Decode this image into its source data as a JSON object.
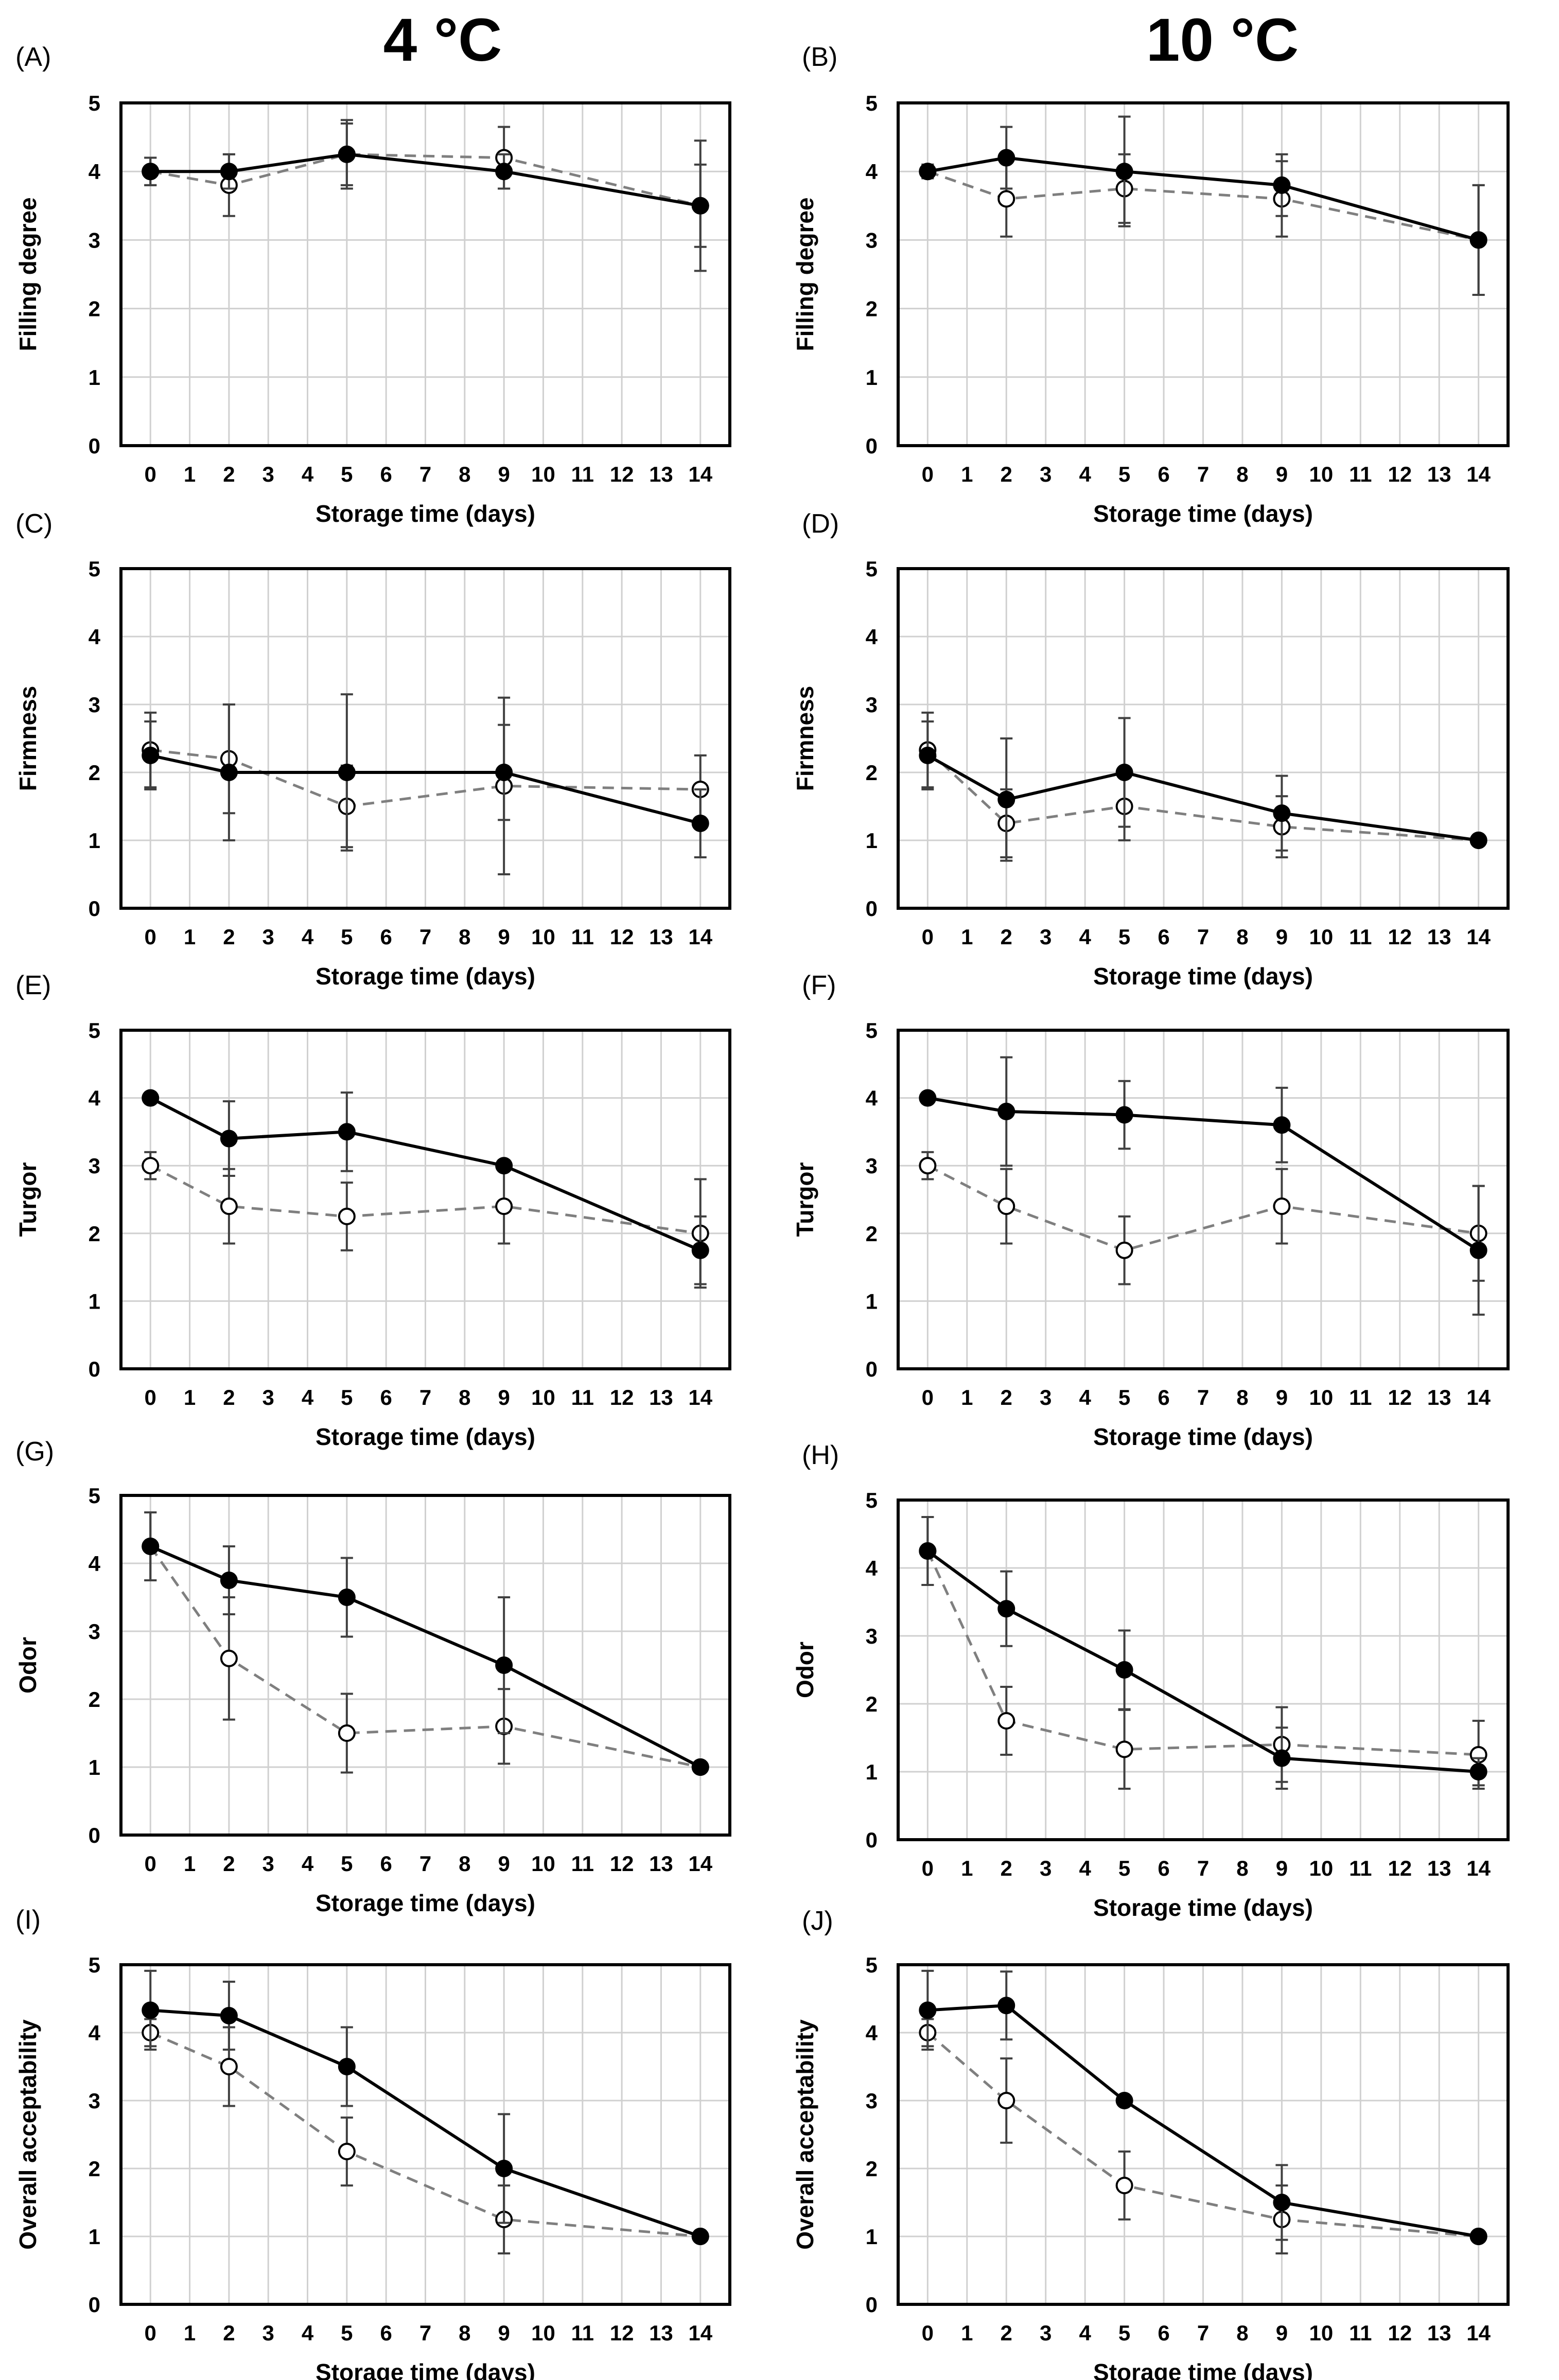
{
  "column_titles": [
    "4 °C",
    "10 °C"
  ],
  "colors": {
    "series_solid": "#000000",
    "series_dashed": "#7f7f7f",
    "grid": "#d0d0d0",
    "errorbar": "#404040"
  },
  "chart_data": [
    {
      "panel": "(A)",
      "type": "line",
      "ylabel": "Filling degree",
      "xlabel": "Storage time (days)",
      "xticks": [
        "0",
        "1",
        "2",
        "3",
        "4",
        "5",
        "6",
        "7",
        "8",
        "9",
        "10",
        "11",
        "12",
        "13",
        "14"
      ],
      "yticks": [
        "0",
        "1",
        "2",
        "3",
        "4",
        "5"
      ],
      "xlim": [
        0,
        14
      ],
      "ylim": [
        0,
        5
      ],
      "grid": true,
      "series": [
        {
          "name": "filled",
          "style": "solid",
          "marker": "filled-circle",
          "x": [
            0,
            2,
            5,
            9,
            14
          ],
          "y": [
            4.0,
            4.0,
            4.25,
            4.0,
            3.5
          ],
          "err": [
            0.2,
            0.25,
            0.5,
            0.25,
            0.6
          ]
        },
        {
          "name": "open",
          "style": "dashed",
          "marker": "open-circle",
          "x": [
            0,
            2,
            5,
            9,
            14
          ],
          "y": [
            4.0,
            3.8,
            4.25,
            4.2,
            3.5
          ],
          "err": [
            0.2,
            0.45,
            0.45,
            0.45,
            0.95
          ]
        }
      ]
    },
    {
      "panel": "(B)",
      "type": "line",
      "ylabel": "Filling degree",
      "xlabel": "Storage time (days)",
      "xticks": [
        "0",
        "1",
        "2",
        "3",
        "4",
        "5",
        "6",
        "7",
        "8",
        "9",
        "10",
        "11",
        "12",
        "13",
        "14"
      ],
      "yticks": [
        "0",
        "1",
        "2",
        "3",
        "4",
        "5"
      ],
      "xlim": [
        0,
        14
      ],
      "ylim": [
        0,
        5
      ],
      "grid": true,
      "series": [
        {
          "name": "filled",
          "style": "solid",
          "marker": "filled-circle",
          "x": [
            0,
            2,
            5,
            9,
            14
          ],
          "y": [
            4.0,
            4.2,
            4.0,
            3.8,
            3.0
          ],
          "err": [
            0.1,
            0.45,
            0.8,
            0.45,
            0.8
          ]
        },
        {
          "name": "open",
          "style": "dashed",
          "marker": "open-circle",
          "x": [
            0,
            2,
            5,
            9,
            14
          ],
          "y": [
            4.0,
            3.6,
            3.75,
            3.6,
            3.0
          ],
          "err": [
            0.1,
            0.55,
            0.5,
            0.55,
            0.8
          ]
        }
      ]
    },
    {
      "panel": "(C)",
      "type": "line",
      "ylabel": "Firmness",
      "xlabel": "Storage time (days)",
      "xticks": [
        "0",
        "1",
        "2",
        "3",
        "4",
        "5",
        "6",
        "7",
        "8",
        "9",
        "10",
        "11",
        "12",
        "13",
        "14"
      ],
      "yticks": [
        "0",
        "1",
        "2",
        "3",
        "4",
        "5"
      ],
      "xlim": [
        0,
        14
      ],
      "ylim": [
        0,
        5
      ],
      "grid": true,
      "series": [
        {
          "name": "filled",
          "style": "solid",
          "marker": "filled-circle",
          "x": [
            0,
            2,
            5,
            9,
            14
          ],
          "y": [
            2.25,
            2.0,
            2.0,
            2.0,
            1.25
          ],
          "err": [
            0.5,
            1.0,
            1.15,
            0.7,
            0.5
          ]
        },
        {
          "name": "open",
          "style": "dashed",
          "marker": "open-circle",
          "x": [
            0,
            2,
            5,
            9,
            14
          ],
          "y": [
            2.33,
            2.2,
            1.5,
            1.8,
            1.75
          ],
          "err": [
            0.55,
            0.8,
            0.6,
            1.3,
            0.5
          ]
        }
      ]
    },
    {
      "panel": "(D)",
      "type": "line",
      "ylabel": "Firmness",
      "xlabel": "Storage time (days)",
      "xticks": [
        "0",
        "1",
        "2",
        "3",
        "4",
        "5",
        "6",
        "7",
        "8",
        "9",
        "10",
        "11",
        "12",
        "13",
        "14"
      ],
      "yticks": [
        "0",
        "1",
        "2",
        "3",
        "4",
        "5"
      ],
      "xlim": [
        0,
        14
      ],
      "ylim": [
        0,
        5
      ],
      "grid": true,
      "series": [
        {
          "name": "filled",
          "style": "solid",
          "marker": "filled-circle",
          "x": [
            0,
            2,
            5,
            9,
            14
          ],
          "y": [
            2.25,
            1.6,
            2.0,
            1.4,
            1.0
          ],
          "err": [
            0.5,
            0.9,
            0.8,
            0.55,
            0.08
          ]
        },
        {
          "name": "open",
          "style": "dashed",
          "marker": "open-circle",
          "x": [
            0,
            2,
            5,
            9,
            14
          ],
          "y": [
            2.33,
            1.25,
            1.5,
            1.2,
            1.0
          ],
          "err": [
            0.55,
            0.5,
            0.5,
            0.45,
            0.05
          ]
        }
      ]
    },
    {
      "panel": "(E)",
      "type": "line",
      "ylabel": "Turgor",
      "xlabel": "Storage time (days)",
      "xticks": [
        "0",
        "1",
        "2",
        "3",
        "4",
        "5",
        "6",
        "7",
        "8",
        "9",
        "10",
        "11",
        "12",
        "13",
        "14"
      ],
      "yticks": [
        "0",
        "1",
        "2",
        "3",
        "4",
        "5"
      ],
      "xlim": [
        0,
        14
      ],
      "ylim": [
        0,
        5
      ],
      "grid": true,
      "series": [
        {
          "name": "filled",
          "style": "solid",
          "marker": "filled-circle",
          "x": [
            0,
            2,
            5,
            9,
            14
          ],
          "y": [
            4.0,
            3.4,
            3.5,
            3.0,
            1.75
          ],
          "err": [
            0.08,
            0.55,
            0.58,
            0.08,
            0.5
          ]
        },
        {
          "name": "open",
          "style": "dashed",
          "marker": "open-circle",
          "x": [
            0,
            2,
            5,
            9,
            14
          ],
          "y": [
            3.0,
            2.4,
            2.25,
            2.4,
            2.0
          ],
          "err": [
            0.2,
            0.55,
            0.5,
            0.55,
            0.8
          ]
        }
      ]
    },
    {
      "panel": "(F)",
      "type": "line",
      "ylabel": "Turgor",
      "xlabel": "Storage time (days)",
      "xticks": [
        "0",
        "1",
        "2",
        "3",
        "4",
        "5",
        "6",
        "7",
        "8",
        "9",
        "10",
        "11",
        "12",
        "13",
        "14"
      ],
      "yticks": [
        "0",
        "1",
        "2",
        "3",
        "4",
        "5"
      ],
      "xlim": [
        0,
        14
      ],
      "ylim": [
        0,
        5
      ],
      "grid": true,
      "series": [
        {
          "name": "filled",
          "style": "solid",
          "marker": "filled-circle",
          "x": [
            0,
            2,
            5,
            9,
            14
          ],
          "y": [
            4.0,
            3.8,
            3.75,
            3.6,
            1.75
          ],
          "err": [
            0.08,
            0.8,
            0.5,
            0.55,
            0.95
          ]
        },
        {
          "name": "open",
          "style": "dashed",
          "marker": "open-circle",
          "x": [
            0,
            2,
            5,
            9,
            14
          ],
          "y": [
            3.0,
            2.4,
            1.75,
            2.4,
            2.0
          ],
          "err": [
            0.2,
            0.55,
            0.5,
            0.55,
            0.7
          ]
        }
      ]
    },
    {
      "panel": "(G)",
      "type": "line",
      "ylabel": "Odor",
      "xlabel": "Storage time (days)",
      "xticks": [
        "0",
        "1",
        "2",
        "3",
        "4",
        "5",
        "6",
        "7",
        "8",
        "9",
        "10",
        "11",
        "12",
        "13",
        "14"
      ],
      "yticks": [
        "0",
        "1",
        "2",
        "3",
        "4",
        "5"
      ],
      "xlim": [
        0,
        14
      ],
      "ylim": [
        0,
        5
      ],
      "grid": true,
      "series": [
        {
          "name": "filled",
          "style": "solid",
          "marker": "filled-circle",
          "x": [
            0,
            2,
            5,
            9,
            14
          ],
          "y": [
            4.25,
            3.75,
            3.5,
            2.5,
            1.0
          ],
          "err": [
            0.5,
            0.5,
            0.58,
            1.0,
            0.0
          ]
        },
        {
          "name": "open",
          "style": "dashed",
          "marker": "open-circle",
          "x": [
            0,
            2,
            5,
            9,
            14
          ],
          "y": [
            4.25,
            2.6,
            1.5,
            1.6,
            1.0
          ],
          "err": [
            0.5,
            0.9,
            0.58,
            0.55,
            0.0
          ]
        }
      ]
    },
    {
      "panel": "(H)",
      "type": "line",
      "ylabel": "Odor",
      "xlabel": "Storage time (days)",
      "xticks": [
        "0",
        "1",
        "2",
        "3",
        "4",
        "5",
        "6",
        "7",
        "8",
        "9",
        "10",
        "11",
        "12",
        "13",
        "14"
      ],
      "yticks": [
        "0",
        "1",
        "2",
        "3",
        "4",
        "5"
      ],
      "xlim": [
        0,
        14
      ],
      "ylim": [
        0,
        5
      ],
      "grid": true,
      "series": [
        {
          "name": "filled",
          "style": "solid",
          "marker": "filled-circle",
          "x": [
            0,
            2,
            5,
            9,
            14
          ],
          "y": [
            4.25,
            3.4,
            2.5,
            1.2,
            1.0
          ],
          "err": [
            0.5,
            0.55,
            0.58,
            0.45,
            0.2
          ]
        },
        {
          "name": "open",
          "style": "dashed",
          "marker": "open-circle",
          "x": [
            0,
            2,
            5,
            9,
            14
          ],
          "y": [
            4.25,
            1.75,
            1.33,
            1.4,
            1.25
          ],
          "err": [
            0.5,
            0.5,
            0.58,
            0.55,
            0.5
          ]
        }
      ]
    },
    {
      "panel": "(I)",
      "type": "line",
      "ylabel": "Overall acceptability",
      "xlabel": "Storage time (days)",
      "xticks": [
        "0",
        "1",
        "2",
        "3",
        "4",
        "5",
        "6",
        "7",
        "8",
        "9",
        "10",
        "11",
        "12",
        "13",
        "14"
      ],
      "yticks": [
        "0",
        "1",
        "2",
        "3",
        "4",
        "5"
      ],
      "xlim": [
        0,
        14
      ],
      "ylim": [
        0,
        5
      ],
      "grid": true,
      "series": [
        {
          "name": "filled",
          "style": "solid",
          "marker": "filled-circle",
          "x": [
            0,
            2,
            5,
            9,
            14
          ],
          "y": [
            4.33,
            4.25,
            3.5,
            2.0,
            1.0
          ],
          "err": [
            0.58,
            0.5,
            0.58,
            0.8,
            0.0
          ]
        },
        {
          "name": "open",
          "style": "dashed",
          "marker": "open-circle",
          "x": [
            0,
            2,
            5,
            9,
            14
          ],
          "y": [
            4.0,
            3.5,
            2.25,
            1.25,
            1.0
          ],
          "err": [
            0.2,
            0.58,
            0.5,
            0.5,
            0.0
          ]
        }
      ]
    },
    {
      "panel": "(J)",
      "type": "line",
      "ylabel": "Overall acceptability",
      "xlabel": "Storage time (days)",
      "xticks": [
        "0",
        "1",
        "2",
        "3",
        "4",
        "5",
        "6",
        "7",
        "8",
        "9",
        "10",
        "11",
        "12",
        "13",
        "14"
      ],
      "yticks": [
        "0",
        "1",
        "2",
        "3",
        "4",
        "5"
      ],
      "xlim": [
        0,
        14
      ],
      "ylim": [
        0,
        5
      ],
      "grid": true,
      "series": [
        {
          "name": "filled",
          "style": "solid",
          "marker": "filled-circle",
          "x": [
            0,
            2,
            5,
            9,
            14
          ],
          "y": [
            4.33,
            4.4,
            3.0,
            1.5,
            1.0
          ],
          "err": [
            0.58,
            0.5,
            0.05,
            0.55,
            0.0
          ]
        },
        {
          "name": "open",
          "style": "dashed",
          "marker": "open-circle",
          "x": [
            0,
            2,
            5,
            9,
            14
          ],
          "y": [
            4.0,
            3.0,
            1.75,
            1.25,
            1.0
          ],
          "err": [
            0.2,
            0.62,
            0.5,
            0.5,
            0.0
          ]
        }
      ]
    }
  ]
}
